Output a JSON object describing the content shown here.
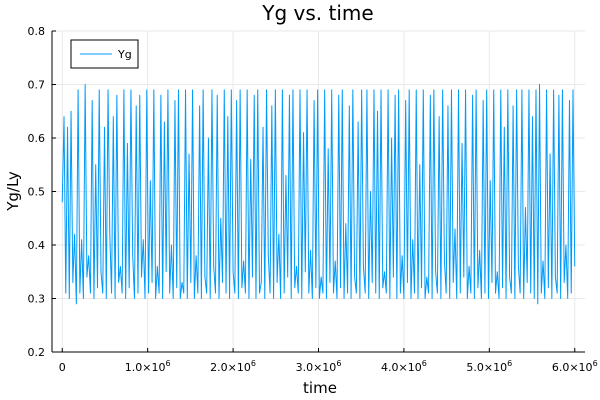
{
  "chart_data": {
    "type": "line",
    "title": "Yg vs. time",
    "xlabel": "time",
    "ylabel": "Yg/Ly",
    "xlim": [
      -120000,
      6120000
    ],
    "ylim": [
      0.2,
      0.8
    ],
    "x_ticks": [
      {
        "value": 0,
        "mantissa": "0",
        "exponent": ""
      },
      {
        "value": 1000000,
        "mantissa": "1.0×10",
        "exponent": "6"
      },
      {
        "value": 2000000,
        "mantissa": "2.0×10",
        "exponent": "6"
      },
      {
        "value": 3000000,
        "mantissa": "3.0×10",
        "exponent": "6"
      },
      {
        "value": 4000000,
        "mantissa": "4.0×10",
        "exponent": "6"
      },
      {
        "value": 5000000,
        "mantissa": "5.0×10",
        "exponent": "6"
      },
      {
        "value": 6000000,
        "mantissa": "6.0×10",
        "exponent": "6"
      }
    ],
    "y_ticks": [
      "0.2",
      "0.3",
      "0.4",
      "0.5",
      "0.6",
      "0.7",
      "0.8"
    ],
    "grid": true,
    "legend_position": "top-left",
    "series": [
      {
        "name": "Yg",
        "color": "#009af9",
        "x_start": 0,
        "x_end": 6000000,
        "values": [
          0.48,
          0.64,
          0.31,
          0.62,
          0.3,
          0.65,
          0.33,
          0.42,
          0.29,
          0.69,
          0.31,
          0.41,
          0.3,
          0.7,
          0.34,
          0.38,
          0.31,
          0.67,
          0.3,
          0.55,
          0.32,
          0.69,
          0.35,
          0.31,
          0.62,
          0.3,
          0.69,
          0.42,
          0.31,
          0.64,
          0.3,
          0.68,
          0.33,
          0.36,
          0.31,
          0.69,
          0.3,
          0.59,
          0.32,
          0.69,
          0.38,
          0.3,
          0.66,
          0.31,
          0.68,
          0.34,
          0.41,
          0.3,
          0.69,
          0.31,
          0.52,
          0.33,
          0.69,
          0.3,
          0.36,
          0.31,
          0.68,
          0.3,
          0.63,
          0.35,
          0.69,
          0.31,
          0.4,
          0.3,
          0.67,
          0.32,
          0.69,
          0.3,
          0.33,
          0.31,
          0.69,
          0.3,
          0.57,
          0.33,
          0.69,
          0.3,
          0.38,
          0.31,
          0.66,
          0.3,
          0.69,
          0.34,
          0.31,
          0.6,
          0.3,
          0.69,
          0.36,
          0.31,
          0.68,
          0.3,
          0.45,
          0.33,
          0.69,
          0.31,
          0.64,
          0.3,
          0.69,
          0.35,
          0.31,
          0.67,
          0.3,
          0.69,
          0.32,
          0.37,
          0.31,
          0.69,
          0.3,
          0.56,
          0.34,
          0.68,
          0.3,
          0.69,
          0.31,
          0.33,
          0.62,
          0.3,
          0.69,
          0.38,
          0.31,
          0.66,
          0.3,
          0.69,
          0.33,
          0.42,
          0.3,
          0.69,
          0.31,
          0.53,
          0.34,
          0.68,
          0.3,
          0.69,
          0.32,
          0.36,
          0.31,
          0.69,
          0.3,
          0.61,
          0.35,
          0.69,
          0.31,
          0.39,
          0.3,
          0.67,
          0.32,
          0.69,
          0.3,
          0.34,
          0.31,
          0.69,
          0.3,
          0.58,
          0.33,
          0.69,
          0.31,
          0.37,
          0.3,
          0.68,
          0.32,
          0.69,
          0.3,
          0.44,
          0.31,
          0.66,
          0.3,
          0.69,
          0.34,
          0.31,
          0.63,
          0.3,
          0.69,
          0.36,
          0.31,
          0.69,
          0.3,
          0.5,
          0.33,
          0.69,
          0.31,
          0.65,
          0.3,
          0.69,
          0.32,
          0.35,
          0.31,
          0.69,
          0.3,
          0.6,
          0.34,
          0.68,
          0.3,
          0.69,
          0.31,
          0.38,
          0.3,
          0.67,
          0.33,
          0.69,
          0.3,
          0.41,
          0.31,
          0.69,
          0.3,
          0.55,
          0.32,
          0.69,
          0.3,
          0.34,
          0.31,
          0.68,
          0.3,
          0.69,
          0.35,
          0.31,
          0.64,
          0.3,
          0.69,
          0.37,
          0.31,
          0.66,
          0.3,
          0.69,
          0.33,
          0.43,
          0.3,
          0.69,
          0.31,
          0.59,
          0.34,
          0.69,
          0.3,
          0.36,
          0.31,
          0.68,
          0.3,
          0.69,
          0.32,
          0.39,
          0.3,
          0.67,
          0.31,
          0.69,
          0.3,
          0.52,
          0.33,
          0.69,
          0.31,
          0.35,
          0.3,
          0.69,
          0.32,
          0.62,
          0.3,
          0.69,
          0.34,
          0.31,
          0.66,
          0.3,
          0.69,
          0.36,
          0.31,
          0.69,
          0.3,
          0.47,
          0.33,
          0.69,
          0.31,
          0.64,
          0.3,
          0.69,
          0.29,
          0.7,
          0.31,
          0.37,
          0.3,
          0.69,
          0.32,
          0.57,
          0.3,
          0.69,
          0.34,
          0.31,
          0.68,
          0.3,
          0.69,
          0.33,
          0.4,
          0.3,
          0.67,
          0.31,
          0.69,
          0.36
        ]
      }
    ]
  }
}
